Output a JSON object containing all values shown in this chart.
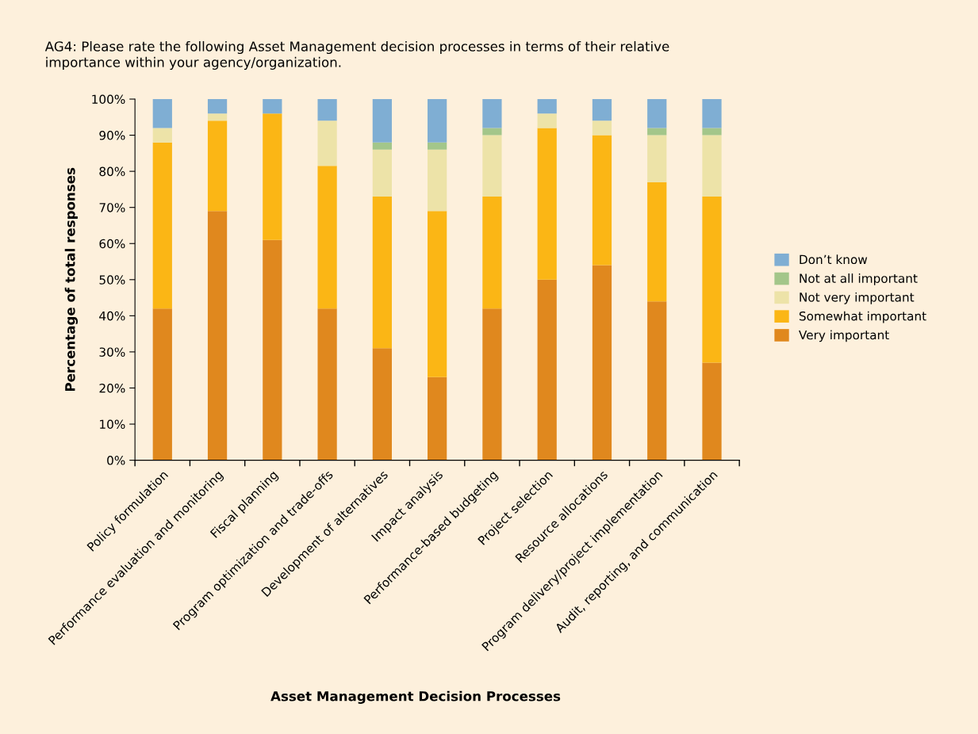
{
  "chart_data": {
    "type": "bar",
    "stacked": true,
    "title": "AG4: Please rate the following Asset Management decision processes in terms of their relative\nimportance within your agency/organization.",
    "xlabel": "Asset Management Decision Processes",
    "ylabel": "Percentage of total responses",
    "categories": [
      "Policy formulation",
      "Performance evaluation and monitoring",
      "Fiscal planning",
      "Program optimization and trade-offs",
      "Development of alternatives",
      "Impact analysis",
      "Performance-based budgeting",
      "Project selection",
      "Resource allocations",
      "Program delivery/project implementation",
      "Audit, reporting, and communication"
    ],
    "series": [
      {
        "name": "Very important",
        "color": "#e0881e",
        "values": [
          42,
          69,
          61,
          42,
          31,
          23,
          42,
          50,
          54,
          44,
          27
        ]
      },
      {
        "name": "Somewhat important",
        "color": "#fbb615",
        "values": [
          46,
          25,
          35,
          39.5,
          42,
          46,
          31,
          42,
          36,
          33,
          46
        ]
      },
      {
        "name": "Not very important",
        "color": "#ede3a8",
        "values": [
          4,
          2,
          0,
          12.5,
          13,
          17,
          17,
          4,
          4,
          13,
          17
        ]
      },
      {
        "name": "Not at all important",
        "color": "#a3c68a",
        "values": [
          0,
          0,
          0,
          0,
          2,
          2,
          2,
          0,
          0,
          2,
          2
        ]
      },
      {
        "name": "Don’t know",
        "color": "#7faed3",
        "values": [
          8,
          4,
          4,
          6,
          12,
          12,
          8,
          4,
          6,
          8,
          8
        ]
      }
    ],
    "ylim": [
      0,
      100
    ],
    "yticks": [
      {
        "value": 0,
        "label": "0%"
      },
      {
        "value": 10,
        "label": "10%"
      },
      {
        "value": 20,
        "label": "20%"
      },
      {
        "value": 30,
        "label": "30%"
      },
      {
        "value": 40,
        "label": "40%"
      },
      {
        "value": 50,
        "label": "50%"
      },
      {
        "value": 60,
        "label": "60%"
      },
      {
        "value": 70,
        "label": "70%"
      },
      {
        "value": 80,
        "label": "80%"
      },
      {
        "value": 90,
        "label": "90%"
      },
      {
        "value": 100,
        "label": "100%"
      }
    ],
    "grid": false,
    "legend": "right"
  }
}
